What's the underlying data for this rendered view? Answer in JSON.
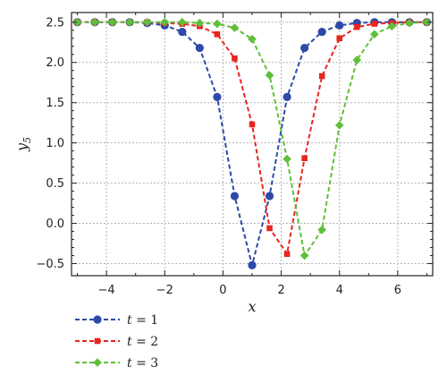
{
  "chart_data": {
    "type": "line",
    "xlabel": "x",
    "ylabel": "y",
    "ylabel_subscript": "5",
    "xlim": [
      -5.2,
      7.2
    ],
    "ylim": [
      -0.65,
      2.62
    ],
    "x_ticks": [
      -4,
      -2,
      0,
      2,
      4,
      6
    ],
    "y_ticks": [
      -0.5,
      0.0,
      0.5,
      1.0,
      1.5,
      2.0,
      2.5
    ],
    "x_tick_labels": [
      "−4",
      "−2",
      "0",
      "2",
      "4",
      "6"
    ],
    "y_tick_labels": [
      "−0.5",
      "0.0",
      "0.5",
      "1.0",
      "1.5",
      "2.0",
      "2.5"
    ],
    "grid": true,
    "legend_position": "below",
    "series": [
      {
        "name": "t = 1",
        "var": "t",
        "value": "= 1",
        "color": "#2e49a8",
        "marker": "circle",
        "x": [
          -5.0,
          -4.4,
          -3.8,
          -3.2,
          -2.6,
          -2.0,
          -1.4,
          -0.8,
          -0.2,
          0.4,
          1.0,
          1.6,
          2.2,
          2.8,
          3.4,
          4.0,
          4.6,
          5.2,
          5.8,
          6.4,
          7.0
        ],
        "y": [
          2.5,
          2.5,
          2.5,
          2.5,
          2.49,
          2.46,
          2.38,
          2.18,
          1.57,
          0.34,
          -0.52,
          0.34,
          1.57,
          2.18,
          2.38,
          2.46,
          2.49,
          2.5,
          2.5,
          2.5,
          2.5
        ]
      },
      {
        "name": "t = 2",
        "var": "t",
        "value": "= 2",
        "color": "#e8251f",
        "marker": "square",
        "x": [
          -5.0,
          -4.4,
          -3.8,
          -3.2,
          -2.6,
          -2.0,
          -1.4,
          -0.8,
          -0.2,
          0.4,
          1.0,
          1.6,
          2.2,
          2.8,
          3.4,
          4.0,
          4.6,
          5.2,
          5.8,
          6.4,
          7.0
        ],
        "y": [
          2.5,
          2.5,
          2.5,
          2.5,
          2.5,
          2.49,
          2.48,
          2.45,
          2.35,
          2.05,
          1.23,
          -0.06,
          -0.38,
          0.81,
          1.83,
          2.3,
          2.44,
          2.48,
          2.49,
          2.5,
          2.5
        ]
      },
      {
        "name": "t = 3",
        "var": "t",
        "value": "= 3",
        "color": "#5fbf3a",
        "marker": "diamond",
        "x": [
          -5.0,
          -4.4,
          -3.8,
          -3.2,
          -2.6,
          -2.0,
          -1.4,
          -0.8,
          -0.2,
          0.4,
          1.0,
          1.6,
          2.2,
          2.8,
          3.4,
          4.0,
          4.6,
          5.2,
          5.8,
          6.4,
          7.0
        ],
        "y": [
          2.5,
          2.5,
          2.5,
          2.5,
          2.5,
          2.5,
          2.5,
          2.49,
          2.48,
          2.43,
          2.29,
          1.84,
          0.8,
          -0.4,
          -0.08,
          1.22,
          2.03,
          2.35,
          2.45,
          2.49,
          2.5
        ]
      }
    ]
  }
}
